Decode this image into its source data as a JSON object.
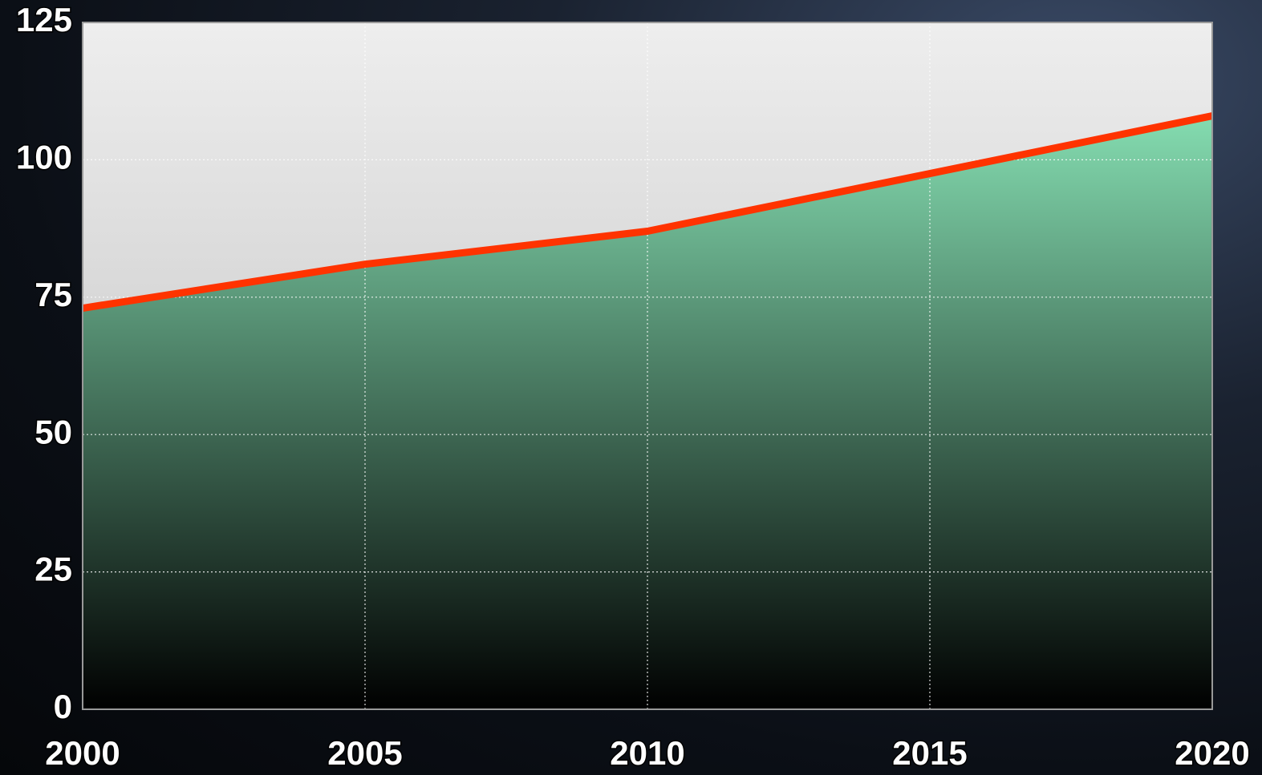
{
  "chart_data": {
    "type": "area",
    "x": [
      2000,
      2005,
      2010,
      2015,
      2020
    ],
    "values": [
      73,
      81,
      87,
      97.5,
      108
    ],
    "color": "#ff3300",
    "fill_colors": [
      "#99ffcc",
      "#000000"
    ],
    "xlim": [
      2000,
      2020
    ],
    "xticks": [
      2000,
      2005,
      2010,
      2015,
      2020
    ],
    "ylim": [
      0,
      125
    ],
    "yticks": [
      0,
      25,
      50,
      75,
      100,
      125
    ],
    "grid": true
  }
}
